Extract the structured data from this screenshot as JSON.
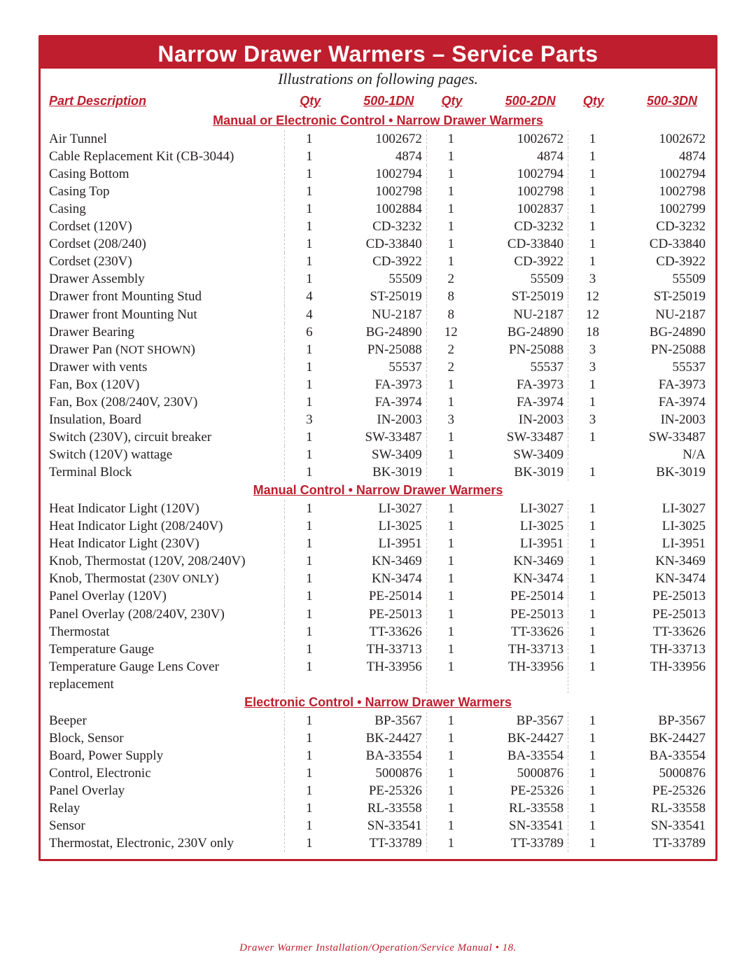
{
  "title": "Narrow Drawer Warmers – Service Parts",
  "subtitle": "Illustrations on following pages.",
  "footer": "Drawer Warmer Installation/Operation/Service Manual • 18.",
  "columns": {
    "desc": "Part Description",
    "qty": "Qty",
    "m1": "500-1DN",
    "m2": "500-2DN",
    "m3": "500-3DN"
  },
  "sections": [
    {
      "heading": "Manual or Electronic Control • Narrow Drawer Warmers",
      "rows": [
        {
          "desc": "Air Tunnel",
          "q1": "1",
          "p1": "1002672",
          "q2": "1",
          "p2": "1002672",
          "q3": "1",
          "p3": "1002672"
        },
        {
          "desc": "Cable Replacement Kit (CB-3044)",
          "q1": "1",
          "p1": "4874",
          "q2": "1",
          "p2": "4874",
          "q3": "1",
          "p3": "4874"
        },
        {
          "desc": "Casing Bottom",
          "q1": "1",
          "p1": "1002794",
          "q2": "1",
          "p2": "1002794",
          "q3": "1",
          "p3": "1002794"
        },
        {
          "desc": "Casing Top",
          "q1": "1",
          "p1": "1002798",
          "q2": "1",
          "p2": "1002798",
          "q3": "1",
          "p3": "1002798"
        },
        {
          "desc": "Casing",
          "q1": "1",
          "p1": "1002884",
          "q2": "1",
          "p2": "1002837",
          "q3": "1",
          "p3": "1002799"
        },
        {
          "desc": "Cordset (120V)",
          "q1": "1",
          "p1": "CD-3232",
          "q2": "1",
          "p2": "CD-3232",
          "q3": "1",
          "p3": "CD-3232"
        },
        {
          "desc": "Cordset (208/240)",
          "q1": "1",
          "p1": "CD-33840",
          "q2": "1",
          "p2": "CD-33840",
          "q3": "1",
          "p3": "CD-33840"
        },
        {
          "desc": "Cordset (230V)",
          "q1": "1",
          "p1": "CD-3922",
          "q2": "1",
          "p2": "CD-3922",
          "q3": "1",
          "p3": "CD-3922"
        },
        {
          "desc": "Drawer Assembly",
          "q1": "1",
          "p1": "55509",
          "q2": "2",
          "p2": "55509",
          "q3": "3",
          "p3": "55509"
        },
        {
          "desc": "Drawer front Mounting Stud",
          "q1": "4",
          "p1": "ST-25019",
          "q2": "8",
          "p2": "ST-25019",
          "q3": "12",
          "p3": "ST-25019"
        },
        {
          "desc": "Drawer front Mounting Nut",
          "q1": "4",
          "p1": "NU-2187",
          "q2": "8",
          "p2": "NU-2187",
          "q3": "12",
          "p3": "NU-2187"
        },
        {
          "desc": "Drawer Bearing",
          "q1": "6",
          "p1": "BG-24890",
          "q2": "12",
          "p2": "BG-24890",
          "q3": "18",
          "p3": "BG-24890"
        },
        {
          "desc": "Drawer Pan (NOT SHOWN)",
          "note": "sc",
          "q1": "1",
          "p1": "PN-25088",
          "q2": "2",
          "p2": "PN-25088",
          "q3": "3",
          "p3": "PN-25088"
        },
        {
          "desc": "Drawer with vents",
          "q1": "1",
          "p1": "55537",
          "q2": "2",
          "p2": "55537",
          "q3": "3",
          "p3": "55537"
        },
        {
          "desc": "Fan, Box (120V)",
          "q1": "1",
          "p1": "FA-3973",
          "q2": "1",
          "p2": "FA-3973",
          "q3": "1",
          "p3": "FA-3973"
        },
        {
          "desc": "Fan, Box (208/240V, 230V)",
          "q1": "1",
          "p1": "FA-3974",
          "q2": "1",
          "p2": "FA-3974",
          "q3": "1",
          "p3": "FA-3974"
        },
        {
          "desc": "Insulation, Board",
          "q1": "3",
          "p1": "IN-2003",
          "q2": "3",
          "p2": "IN-2003",
          "q3": "3",
          "p3": "IN-2003"
        },
        {
          "desc": "Switch (230V), circuit breaker",
          "q1": "1",
          "p1": "SW-33487",
          "q2": "1",
          "p2": "SW-33487",
          "q3": "1",
          "p3": "SW-33487"
        },
        {
          "desc": "Switch (120V) wattage",
          "q1": "1",
          "p1": "SW-3409",
          "q2": "1",
          "p2": "SW-3409",
          "q3": "",
          "p3": "N/A"
        },
        {
          "desc": "Terminal Block",
          "q1": "1",
          "p1": "BK-3019",
          "q2": "1",
          "p2": "BK-3019",
          "q3": "1",
          "p3": "BK-3019"
        }
      ]
    },
    {
      "heading": "Manual Control • Narrow Drawer Warmers",
      "rows": [
        {
          "desc": "Heat Indicator Light (120V)",
          "q1": "1",
          "p1": "LI-3027",
          "q2": "1",
          "p2": "LI-3027",
          "q3": "1",
          "p3": "LI-3027"
        },
        {
          "desc": "Heat Indicator Light (208/240V)",
          "q1": "1",
          "p1": "LI-3025",
          "q2": "1",
          "p2": "LI-3025",
          "q3": "1",
          "p3": "LI-3025"
        },
        {
          "desc": "Heat Indicator Light (230V)",
          "q1": "1",
          "p1": "LI-3951",
          "q2": "1",
          "p2": "LI-3951",
          "q3": "1",
          "p3": "LI-3951"
        },
        {
          "desc": "Knob, Thermostat (120V, 208/240V)",
          "q1": "1",
          "p1": "KN-3469",
          "q2": "1",
          "p2": "KN-3469",
          "q3": "1",
          "p3": "KN-3469"
        },
        {
          "desc": "Knob, Thermostat (230V ONLY)",
          "note": "sc",
          "q1": "1",
          "p1": "KN-3474",
          "q2": "1",
          "p2": "KN-3474",
          "q3": "1",
          "p3": "KN-3474"
        },
        {
          "desc": "Panel Overlay (120V)",
          "q1": "1",
          "p1": "PE-25014",
          "q2": "1",
          "p2": "PE-25014",
          "q3": "1",
          "p3": "PE-25013"
        },
        {
          "desc": "Panel Overlay (208/240V, 230V)",
          "q1": "1",
          "p1": "PE-25013",
          "q2": "1",
          "p2": "PE-25013",
          "q3": "1",
          "p3": "PE-25013"
        },
        {
          "desc": "Thermostat",
          "q1": "1",
          "p1": "TT-33626",
          "q2": "1",
          "p2": "TT-33626",
          "q3": "1",
          "p3": "TT-33626"
        },
        {
          "desc": "Temperature Gauge",
          "q1": "1",
          "p1": "TH-33713",
          "q2": "1",
          "p2": "TH-33713",
          "q3": "1",
          "p3": "TH-33713"
        },
        {
          "desc": "Temperature Gauge Lens Cover replacement",
          "q1": "1",
          "p1": "TH-33956",
          "q2": "1",
          "p2": "TH-33956",
          "q3": "1",
          "p3": "TH-33956"
        }
      ]
    },
    {
      "heading": "Electronic Control • Narrow Drawer Warmers",
      "rows": [
        {
          "desc": "Beeper",
          "q1": "1",
          "p1": "BP-3567",
          "q2": "1",
          "p2": "BP-3567",
          "q3": "1",
          "p3": "BP-3567"
        },
        {
          "desc": "Block, Sensor",
          "q1": "1",
          "p1": "BK-24427",
          "q2": "1",
          "p2": "BK-24427",
          "q3": "1",
          "p3": "BK-24427"
        },
        {
          "desc": "Board, Power Supply",
          "q1": "1",
          "p1": "BA-33554",
          "q2": "1",
          "p2": "BA-33554",
          "q3": "1",
          "p3": "BA-33554"
        },
        {
          "desc": "Control, Electronic",
          "q1": "1",
          "p1": "5000876",
          "q2": "1",
          "p2": "5000876",
          "q3": "1",
          "p3": "5000876"
        },
        {
          "desc": "Panel Overlay",
          "q1": "1",
          "p1": "PE-25326",
          "q2": "1",
          "p2": "PE-25326",
          "q3": "1",
          "p3": "PE-25326"
        },
        {
          "desc": "Relay",
          "q1": "1",
          "p1": "RL-33558",
          "q2": "1",
          "p2": "RL-33558",
          "q3": "1",
          "p3": "RL-33558"
        },
        {
          "desc": "Sensor",
          "q1": "1",
          "p1": "SN-33541",
          "q2": "1",
          "p2": "SN-33541",
          "q3": "1",
          "p3": "SN-33541"
        },
        {
          "desc": "Thermostat, Electronic, 230V only",
          "q1": "1",
          "p1": "TT-33789",
          "q2": "1",
          "p2": "TT-33789",
          "q3": "1",
          "p3": "TT-33789"
        }
      ]
    }
  ]
}
